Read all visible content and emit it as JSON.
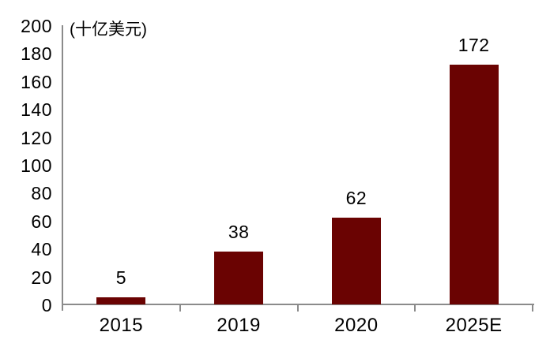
{
  "chart_data": {
    "type": "bar",
    "title": "",
    "unit_label": "(十亿美元)",
    "categories": [
      "2015",
      "2019",
      "2020",
      "2025E"
    ],
    "values": [
      5,
      38,
      62,
      172
    ],
    "data_labels": [
      "5",
      "38",
      "62",
      "172"
    ],
    "ylim": [
      0,
      200
    ],
    "ytick_step": 20,
    "yticks": [
      0,
      20,
      40,
      60,
      80,
      100,
      120,
      140,
      160,
      180,
      200
    ],
    "grid": "off",
    "legend": "none",
    "colors": {
      "bar": "#6a0302",
      "axis": "#8b8b8b",
      "text": "#000000",
      "background": "#ffffff"
    }
  }
}
